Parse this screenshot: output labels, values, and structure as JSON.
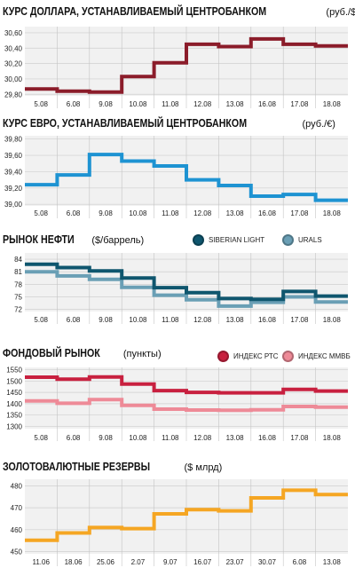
{
  "chart_data": [
    {
      "type": "line",
      "title": "КУРС ДОЛЛАРА, УСТАНАВЛИВАЕМЫЙ ЦЕНТРОБАНКОМ",
      "unit": "(руб./$)",
      "categories": [
        "5.08",
        "6.08",
        "9.08",
        "10.08",
        "11.08",
        "12.08",
        "13.08",
        "16.08",
        "17.08",
        "18.08"
      ],
      "series": [
        {
          "color": "#8b1c2a",
          "values": [
            29.87,
            29.84,
            29.83,
            30.03,
            30.21,
            30.45,
            30.42,
            30.52,
            30.45,
            30.43
          ]
        }
      ],
      "ylim": [
        29.78,
        30.68
      ],
      "yticks": [
        "29,80",
        "30,00",
        "30,20",
        "30,40",
        "30,60"
      ],
      "ytick_values": [
        29.8,
        30.0,
        30.2,
        30.4,
        30.6
      ],
      "step": true,
      "grid": true
    },
    {
      "type": "line",
      "title": "КУРС ЕВРО, УСТАНАВЛИВАЕМЫЙ ЦЕНТРОБАНКОМ",
      "unit": "(руб./€)",
      "categories": [
        "5.08",
        "6.08",
        "9.08",
        "10.08",
        "11.08",
        "12.08",
        "13.08",
        "16.08",
        "17.08",
        "18.08"
      ],
      "series": [
        {
          "color": "#1e93d2",
          "values": [
            39.24,
            39.36,
            39.61,
            39.53,
            39.47,
            39.3,
            39.23,
            39.1,
            39.12,
            39.05
          ]
        }
      ],
      "ylim": [
        38.98,
        39.84
      ],
      "yticks": [
        "39,00",
        "39,20",
        "39,40",
        "39,60",
        "39,80"
      ],
      "ytick_values": [
        39.0,
        39.2,
        39.4,
        39.6,
        39.8
      ],
      "step": true,
      "grid": true
    },
    {
      "type": "line",
      "title": "РЫНОК НЕФТИ",
      "unit": "($/баррель)",
      "categories": [
        "5.08",
        "6.08",
        "9.08",
        "10.08",
        "11.08",
        "12.08",
        "13.08",
        "16.08",
        "17.08",
        "18.08"
      ],
      "series": [
        {
          "name": "SIBERIAN LIGHT",
          "color": "#0f566e",
          "values": [
            82.8,
            82.0,
            81.2,
            79.5,
            77.2,
            76.0,
            74.6,
            74.4,
            76.3,
            75.2
          ]
        },
        {
          "name": "URALS",
          "color": "#6a9fb5",
          "values": [
            81.0,
            80.0,
            79.2,
            77.3,
            75.4,
            74.3,
            72.8,
            73.7,
            75.0,
            73.8
          ]
        }
      ],
      "ylim": [
        71.5,
        85.5
      ],
      "yticks": [
        "72",
        "75",
        "78",
        "81",
        "84"
      ],
      "ytick_values": [
        72,
        75,
        78,
        81,
        84
      ],
      "step": true,
      "grid": true
    },
    {
      "type": "line",
      "title": "ФОНДОВЫЙ РЫНОК",
      "unit": "(пункты)",
      "categories": [
        "5.08",
        "6.08",
        "9.08",
        "10.08",
        "11.08",
        "12.08",
        "13.08",
        "16.08",
        "17.08",
        "18.08"
      ],
      "series": [
        {
          "name": "ИНДЕКС РТС",
          "color": "#c8203f",
          "values": [
            1517,
            1508,
            1518,
            1487,
            1458,
            1450,
            1448,
            1448,
            1463,
            1456
          ]
        },
        {
          "name": "ИНДЕКС ММВБ",
          "color": "#ee8a97",
          "values": [
            1412,
            1402,
            1418,
            1393,
            1376,
            1372,
            1371,
            1373,
            1388,
            1385
          ]
        }
      ],
      "ylim": [
        1290,
        1560
      ],
      "yticks": [
        "1300",
        "1350",
        "1400",
        "1450",
        "1500",
        "1550"
      ],
      "ytick_values": [
        1300,
        1350,
        1400,
        1450,
        1500,
        1550
      ],
      "step": true,
      "grid": true
    },
    {
      "type": "line",
      "title": "ЗОЛОТОВАЛЮТНЫЕ РЕЗЕРВЫ",
      "unit": "($ млрд)",
      "categories": [
        "11.06",
        "18.06",
        "25.06",
        "2.07",
        "9.07",
        "16.07",
        "23.07",
        "30.07",
        "6.08",
        "13.08"
      ],
      "series": [
        {
          "color": "#f5a623",
          "values": [
            455.2,
            458.5,
            461.0,
            460.5,
            467.2,
            469.1,
            468.6,
            474.5,
            478.0,
            476.0
          ]
        }
      ],
      "ylim": [
        449,
        483
      ],
      "yticks": [
        "450",
        "460",
        "470",
        "480"
      ],
      "ytick_values": [
        450,
        460,
        470,
        480
      ],
      "step": true,
      "grid": true
    }
  ]
}
